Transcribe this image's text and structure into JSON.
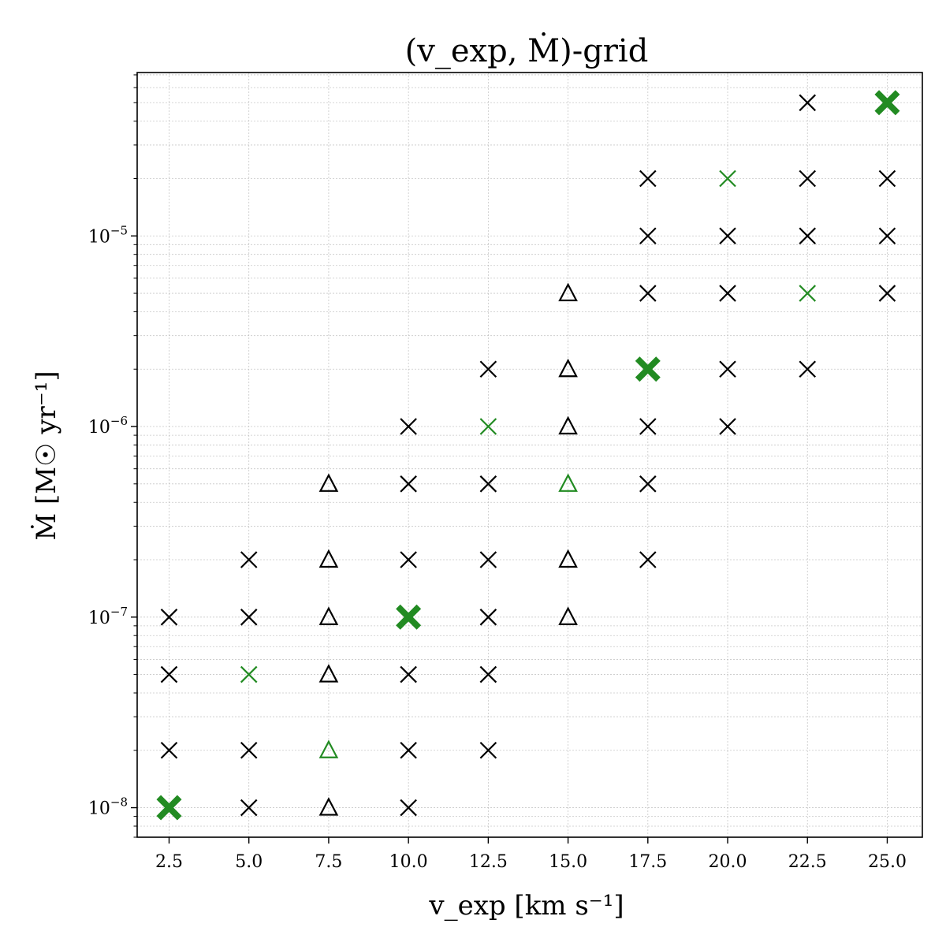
{
  "chart_data": {
    "type": "scatter",
    "title": "(v_exp, Ṁ)-grid",
    "xlabel": "v_exp [km s⁻¹]",
    "ylabel": "Ṁ [M☉ yr⁻¹]",
    "xscale": "linear",
    "yscale": "log",
    "xlim": [
      1.5,
      26.1
    ],
    "ylim": [
      7e-09,
      7.2e-05
    ],
    "grid": true,
    "x_ticks": [
      {
        "value": 2.5,
        "label": "2.5"
      },
      {
        "value": 5.0,
        "label": "5.0"
      },
      {
        "value": 7.5,
        "label": "7.5"
      },
      {
        "value": 10.0,
        "label": "10.0"
      },
      {
        "value": 12.5,
        "label": "12.5"
      },
      {
        "value": 15.0,
        "label": "15.0"
      },
      {
        "value": 17.5,
        "label": "17.5"
      },
      {
        "value": 20.0,
        "label": "20.0"
      },
      {
        "value": 22.5,
        "label": "22.5"
      },
      {
        "value": 25.0,
        "label": "25.0"
      }
    ],
    "y_ticks": [
      {
        "value": 1e-08,
        "base": "10",
        "exp": "−8"
      },
      {
        "value": 1e-07,
        "base": "10",
        "exp": "−7"
      },
      {
        "value": 1e-06,
        "base": "10",
        "exp": "−6"
      },
      {
        "value": 1e-05,
        "base": "10",
        "exp": "−5"
      }
    ],
    "marker_colors": {
      "black": "#000000",
      "green": "#228b22"
    },
    "series": [
      {
        "marker": "x",
        "color": "black",
        "points": [
          [
            2.5,
            2e-08
          ],
          [
            2.5,
            5e-08
          ],
          [
            2.5,
            1e-07
          ],
          [
            5.0,
            1e-08
          ],
          [
            5.0,
            2e-08
          ],
          [
            5.0,
            1e-07
          ],
          [
            5.0,
            2e-07
          ],
          [
            10.0,
            1e-08
          ],
          [
            10.0,
            2e-08
          ],
          [
            10.0,
            5e-08
          ],
          [
            10.0,
            2e-07
          ],
          [
            10.0,
            5e-07
          ],
          [
            10.0,
            1e-06
          ],
          [
            12.5,
            2e-08
          ],
          [
            12.5,
            5e-08
          ],
          [
            12.5,
            1e-07
          ],
          [
            12.5,
            2e-07
          ],
          [
            12.5,
            5e-07
          ],
          [
            12.5,
            2e-06
          ],
          [
            17.5,
            2e-07
          ],
          [
            17.5,
            5e-07
          ],
          [
            17.5,
            1e-06
          ],
          [
            17.5,
            5e-06
          ],
          [
            17.5,
            1e-05
          ],
          [
            17.5,
            2e-05
          ],
          [
            20.0,
            1e-06
          ],
          [
            20.0,
            2e-06
          ],
          [
            20.0,
            5e-06
          ],
          [
            20.0,
            1e-05
          ],
          [
            22.5,
            2e-06
          ],
          [
            22.5,
            1e-05
          ],
          [
            22.5,
            2e-05
          ],
          [
            22.5,
            5e-05
          ],
          [
            25.0,
            5e-06
          ],
          [
            25.0,
            1e-05
          ],
          [
            25.0,
            2e-05
          ]
        ]
      },
      {
        "marker": "triangle",
        "color": "black",
        "points": [
          [
            7.5,
            1e-08
          ],
          [
            7.5,
            5e-08
          ],
          [
            7.5,
            1e-07
          ],
          [
            7.5,
            2e-07
          ],
          [
            7.5,
            5e-07
          ],
          [
            15.0,
            1e-07
          ],
          [
            15.0,
            2e-07
          ],
          [
            15.0,
            1e-06
          ],
          [
            15.0,
            2e-06
          ],
          [
            15.0,
            5e-06
          ]
        ]
      },
      {
        "marker": "x",
        "color": "green",
        "points": [
          [
            5.0,
            5e-08
          ],
          [
            12.5,
            1e-06
          ],
          [
            20.0,
            2e-05
          ],
          [
            22.5,
            5e-06
          ]
        ]
      },
      {
        "marker": "triangle",
        "color": "green",
        "points": [
          [
            7.5,
            2e-08
          ],
          [
            15.0,
            5e-07
          ]
        ]
      },
      {
        "marker": "X-filled",
        "color": "green",
        "points": [
          [
            2.5,
            1e-08
          ],
          [
            10.0,
            1e-07
          ],
          [
            17.5,
            2e-06
          ],
          [
            25.0,
            5e-05
          ]
        ]
      }
    ]
  }
}
